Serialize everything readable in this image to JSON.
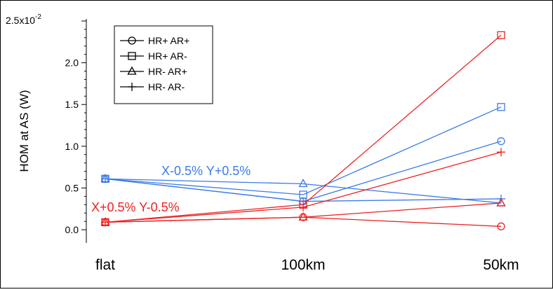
{
  "chart_data": {
    "type": "line",
    "title": "",
    "xlabel": "",
    "ylabel": "HOM at AS (W)",
    "y_axis_exponent_label": "x10",
    "y_axis_exponent_value": "-2",
    "categories": [
      "flat",
      "100km",
      "50km"
    ],
    "ylim": [
      -0.1,
      2.5
    ],
    "ytick_values": [
      0.0,
      0.5,
      1.0,
      1.5,
      2.0,
      2.5
    ],
    "ytick_labels": [
      "0.0",
      "0.5",
      "1.0",
      "1.5",
      "2.0",
      "2.5"
    ],
    "grid": false,
    "legend_position": "top-left",
    "legend": [
      {
        "label": "HR+ AR+",
        "marker": "circle"
      },
      {
        "label": "HR+ AR-",
        "marker": "square"
      },
      {
        "label": "HR- AR+",
        "marker": "triangle"
      },
      {
        "label": "HR- AR-",
        "marker": "plus"
      }
    ],
    "groups": [
      {
        "label": "X-0.5% Y+0.5%",
        "color": "#3c7be8",
        "series": [
          {
            "name": "HR+ AR+",
            "marker": "circle",
            "values": [
              0.61,
              0.34,
              1.06
            ]
          },
          {
            "name": "HR+ AR-",
            "marker": "square",
            "values": [
              0.61,
              0.42,
              1.47
            ]
          },
          {
            "name": "HR- AR+",
            "marker": "triangle",
            "values": [
              0.61,
              0.55,
              0.32
            ]
          },
          {
            "name": "HR- AR-",
            "marker": "plus",
            "values": [
              0.61,
              0.34,
              0.37
            ]
          }
        ]
      },
      {
        "label": "X+0.5% Y-0.5%",
        "color": "#ee2222",
        "series": [
          {
            "name": "HR+ AR+",
            "marker": "circle",
            "values": [
              0.09,
              0.15,
              0.04
            ]
          },
          {
            "name": "HR+ AR-",
            "marker": "square",
            "values": [
              0.09,
              0.3,
              2.33
            ]
          },
          {
            "name": "HR- AR+",
            "marker": "triangle",
            "values": [
              0.09,
              0.15,
              0.32
            ]
          },
          {
            "name": "HR- AR-",
            "marker": "plus",
            "values": [
              0.09,
              0.27,
              0.93
            ]
          }
        ]
      }
    ]
  }
}
